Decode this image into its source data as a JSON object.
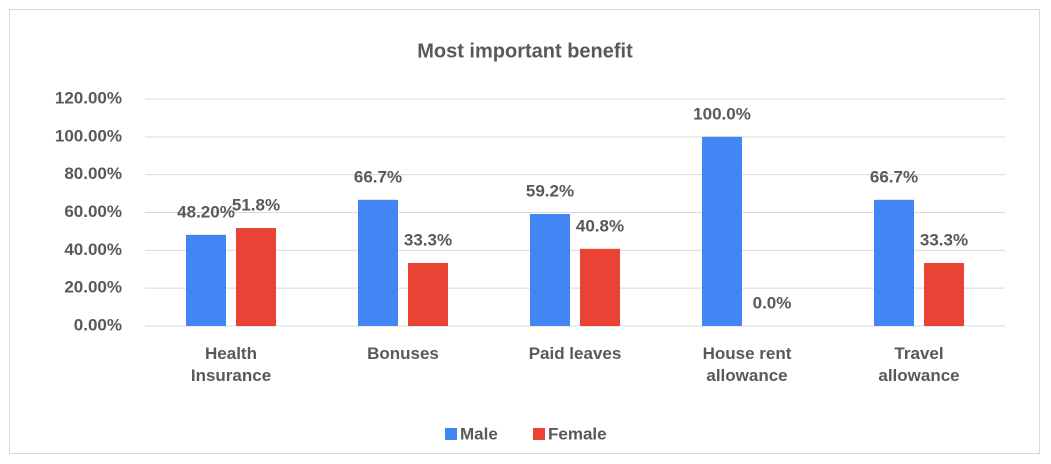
{
  "chart_data": {
    "type": "bar",
    "title": "Most important benefit",
    "categories": [
      "Health Insurance",
      "Bonuses",
      "Paid leaves",
      "House rent allowance",
      "Travel allowance"
    ],
    "series": [
      {
        "name": "Male",
        "color": "#4285F4",
        "values": [
          48.2,
          66.7,
          59.2,
          100.0,
          66.7
        ],
        "value_labels": [
          "48.20%",
          "66.7%",
          "59.2%",
          "100.0%",
          "66.7%"
        ]
      },
      {
        "name": "Female",
        "color": "#EA4335",
        "values": [
          51.8,
          33.3,
          40.8,
          0.0,
          33.3
        ],
        "value_labels": [
          "51.8%",
          "33.3%",
          "40.8%",
          "0.0%",
          "33.3%"
        ]
      }
    ],
    "ylim": [
      0,
      120
    ],
    "yticks": [
      {
        "value": 0,
        "label": "0.00%"
      },
      {
        "value": 20,
        "label": "20.00%"
      },
      {
        "value": 40,
        "label": "40.00%"
      },
      {
        "value": 60,
        "label": "60.00%"
      },
      {
        "value": 80,
        "label": "80.00%"
      },
      {
        "value": 100,
        "label": "100.00%"
      },
      {
        "value": 120,
        "label": "120.00%"
      }
    ],
    "grid": true,
    "legend": "bottom"
  }
}
